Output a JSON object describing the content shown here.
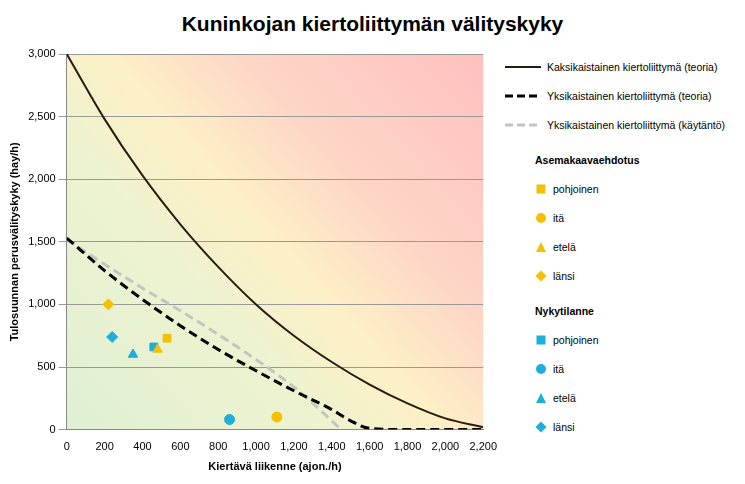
{
  "chart_data": {
    "type": "scatter",
    "title": "Kuninkojan kiertoliittymän välityskyky",
    "x_label": "Kiertävä liikenne (ajon./h)",
    "y_label": "Tulosuunnan perusvälityskyky (hay/h)",
    "xlim": [
      0,
      2200
    ],
    "xticks": [
      0,
      200,
      400,
      600,
      800,
      1000,
      1200,
      1400,
      1600,
      1800,
      2000,
      2200
    ],
    "ylim": [
      0,
      3000
    ],
    "yticks": [
      0,
      500,
      1000,
      1500,
      2000,
      2500,
      3000
    ],
    "grid": true,
    "legend": "right",
    "series": [
      {
        "name": "Kaksikaistainen kiertoliittymä (teoria)",
        "type": "line",
        "line_style": "solid",
        "color": "#2b1a10",
        "x": [
          0,
          200,
          400,
          600,
          800,
          1000,
          1200,
          1400,
          1600,
          1800,
          2000,
          2200
        ],
        "values": [
          3000,
          2480,
          2030,
          1640,
          1300,
          1000,
          750,
          540,
          360,
          210,
          90,
          20
        ]
      },
      {
        "name": "Yksikaistainen kiertoliittymä (teoria)",
        "type": "line",
        "line_style": "dashed",
        "color": "#000000",
        "x": [
          0,
          200,
          400,
          600,
          800,
          1000,
          1200,
          1400,
          1500,
          1600,
          1800,
          2000,
          2200
        ],
        "values": [
          1530,
          1270,
          1040,
          830,
          640,
          470,
          310,
          160,
          70,
          10,
          0,
          0,
          0
        ]
      },
      {
        "name": "Yksikaistainen kiertoliittymä (käytäntö)",
        "type": "line",
        "line_style": "dashed",
        "color": "#c4c4c4",
        "x": [
          0,
          200,
          400,
          600,
          800,
          1000,
          1200,
          1300,
          1400,
          1450
        ],
        "values": [
          1520,
          1320,
          1130,
          950,
          760,
          560,
          340,
          210,
          70,
          0
        ]
      },
      {
        "name": "pohjoinen",
        "group": "Asemakaavaehdotus",
        "type": "scatter",
        "marker": "square",
        "color": "#f5c000",
        "x": [
          530
        ],
        "values": [
          730
        ]
      },
      {
        "name": "itä",
        "group": "Asemakaavaehdotus",
        "type": "scatter",
        "marker": "circle",
        "color": "#f5c000",
        "x": [
          1110
        ],
        "values": [
          100
        ]
      },
      {
        "name": "etelä",
        "group": "Asemakaavaehdotus",
        "type": "scatter",
        "marker": "triangle",
        "color": "#f5c000",
        "x": [
          480
        ],
        "values": [
          640
        ]
      },
      {
        "name": "länsi",
        "group": "Asemakaavaehdotus",
        "type": "scatter",
        "marker": "diamond",
        "color": "#f5c000",
        "x": [
          220
        ],
        "values": [
          1000
        ]
      },
      {
        "name": "pohjoinen",
        "group": "Nykytilanne",
        "type": "scatter",
        "marker": "square",
        "color": "#1eaedb",
        "x": [
          460
        ],
        "values": [
          660
        ]
      },
      {
        "name": "itä",
        "group": "Nykytilanne",
        "type": "scatter",
        "marker": "circle",
        "color": "#1eaedb",
        "x": [
          860
        ],
        "values": [
          80
        ]
      },
      {
        "name": "etelä",
        "group": "Nykytilanne",
        "type": "scatter",
        "marker": "triangle",
        "color": "#1eaedb",
        "x": [
          350
        ],
        "values": [
          600
        ]
      },
      {
        "name": "länsi",
        "group": "Nykytilanne",
        "type": "scatter",
        "marker": "diamond",
        "color": "#1eaedb",
        "x": [
          240
        ],
        "values": [
          740
        ]
      }
    ]
  }
}
